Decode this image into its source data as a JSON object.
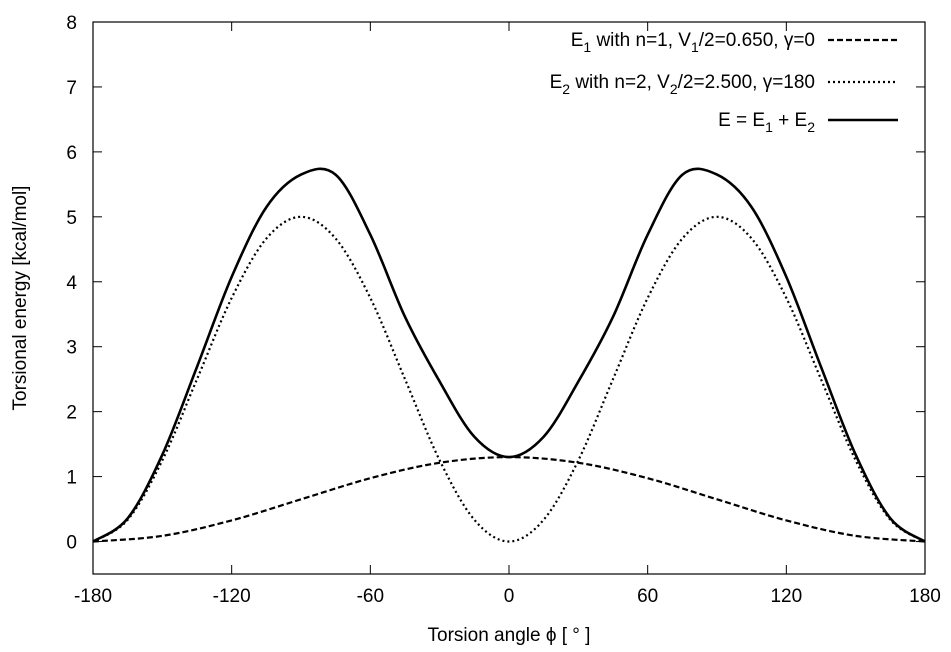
{
  "chart_data": {
    "type": "line",
    "xlabel": "Torsion angle ϕ [ ° ]",
    "ylabel": "Torsional energy [kcal/mol]",
    "xlim": [
      -180,
      180
    ],
    "ylim": [
      -0.5,
      8
    ],
    "xticks": [
      -180,
      -120,
      -60,
      0,
      60,
      120,
      180
    ],
    "yticks": [
      0,
      1,
      2,
      3,
      4,
      5,
      6,
      7,
      8
    ],
    "grid": false,
    "legend_position": "top-right",
    "series": [
      {
        "name": "E1 with n=1, V1/2=0.650, γ=0",
        "style": "dashed",
        "color": "#000000",
        "x": [
          -180,
          -150,
          -120,
          -90,
          -60,
          -30,
          0,
          30,
          60,
          90,
          120,
          150,
          180
        ],
        "y": [
          0.0,
          0.087,
          0.325,
          0.65,
          0.975,
          1.213,
          1.3,
          1.213,
          0.975,
          0.65,
          0.325,
          0.087,
          0.0
        ]
      },
      {
        "name": "E2 with n=2, V2/2=2.500, γ=180",
        "style": "dotted",
        "color": "#000000",
        "x": [
          -180,
          -165,
          -150,
          -135,
          -120,
          -105,
          -90,
          -75,
          -60,
          -45,
          -30,
          -15,
          0,
          15,
          30,
          45,
          60,
          75,
          90,
          105,
          120,
          135,
          150,
          165,
          180
        ],
        "y": [
          0.0,
          0.335,
          1.25,
          2.5,
          3.75,
          4.665,
          5.0,
          4.665,
          3.75,
          2.5,
          1.25,
          0.335,
          0.0,
          0.335,
          1.25,
          2.5,
          3.75,
          4.665,
          5.0,
          4.665,
          3.75,
          2.5,
          1.25,
          0.335,
          0.0
        ]
      },
      {
        "name": "E = E1 + E2",
        "style": "solid",
        "color": "#000000",
        "x": [
          -180,
          -165,
          -150,
          -135,
          -120,
          -105,
          -90,
          -75,
          -60,
          -45,
          -30,
          -15,
          0,
          15,
          30,
          45,
          60,
          75,
          90,
          105,
          120,
          135,
          150,
          165,
          180
        ],
        "y": [
          0.0,
          0.357,
          1.337,
          2.69,
          4.075,
          5.147,
          5.65,
          5.648,
          4.725,
          3.46,
          2.463,
          1.613,
          1.3,
          1.613,
          2.463,
          3.46,
          4.725,
          5.648,
          5.65,
          5.147,
          4.075,
          2.69,
          1.337,
          0.357,
          0.0
        ]
      }
    ]
  },
  "legend": {
    "entries": [
      {
        "base": "E",
        "sub": "1",
        "rest_a": " with n=1, V",
        "sub2": "1",
        "rest_b": "/2=0.650, γ=0"
      },
      {
        "base": "E",
        "sub": "2",
        "rest_a": " with n=2, V",
        "sub2": "2",
        "rest_b": "/2=2.500, γ=180"
      },
      {
        "base": "E = E",
        "sub": "1",
        "rest_a": " + E",
        "sub2": "2",
        "rest_b": ""
      }
    ]
  }
}
